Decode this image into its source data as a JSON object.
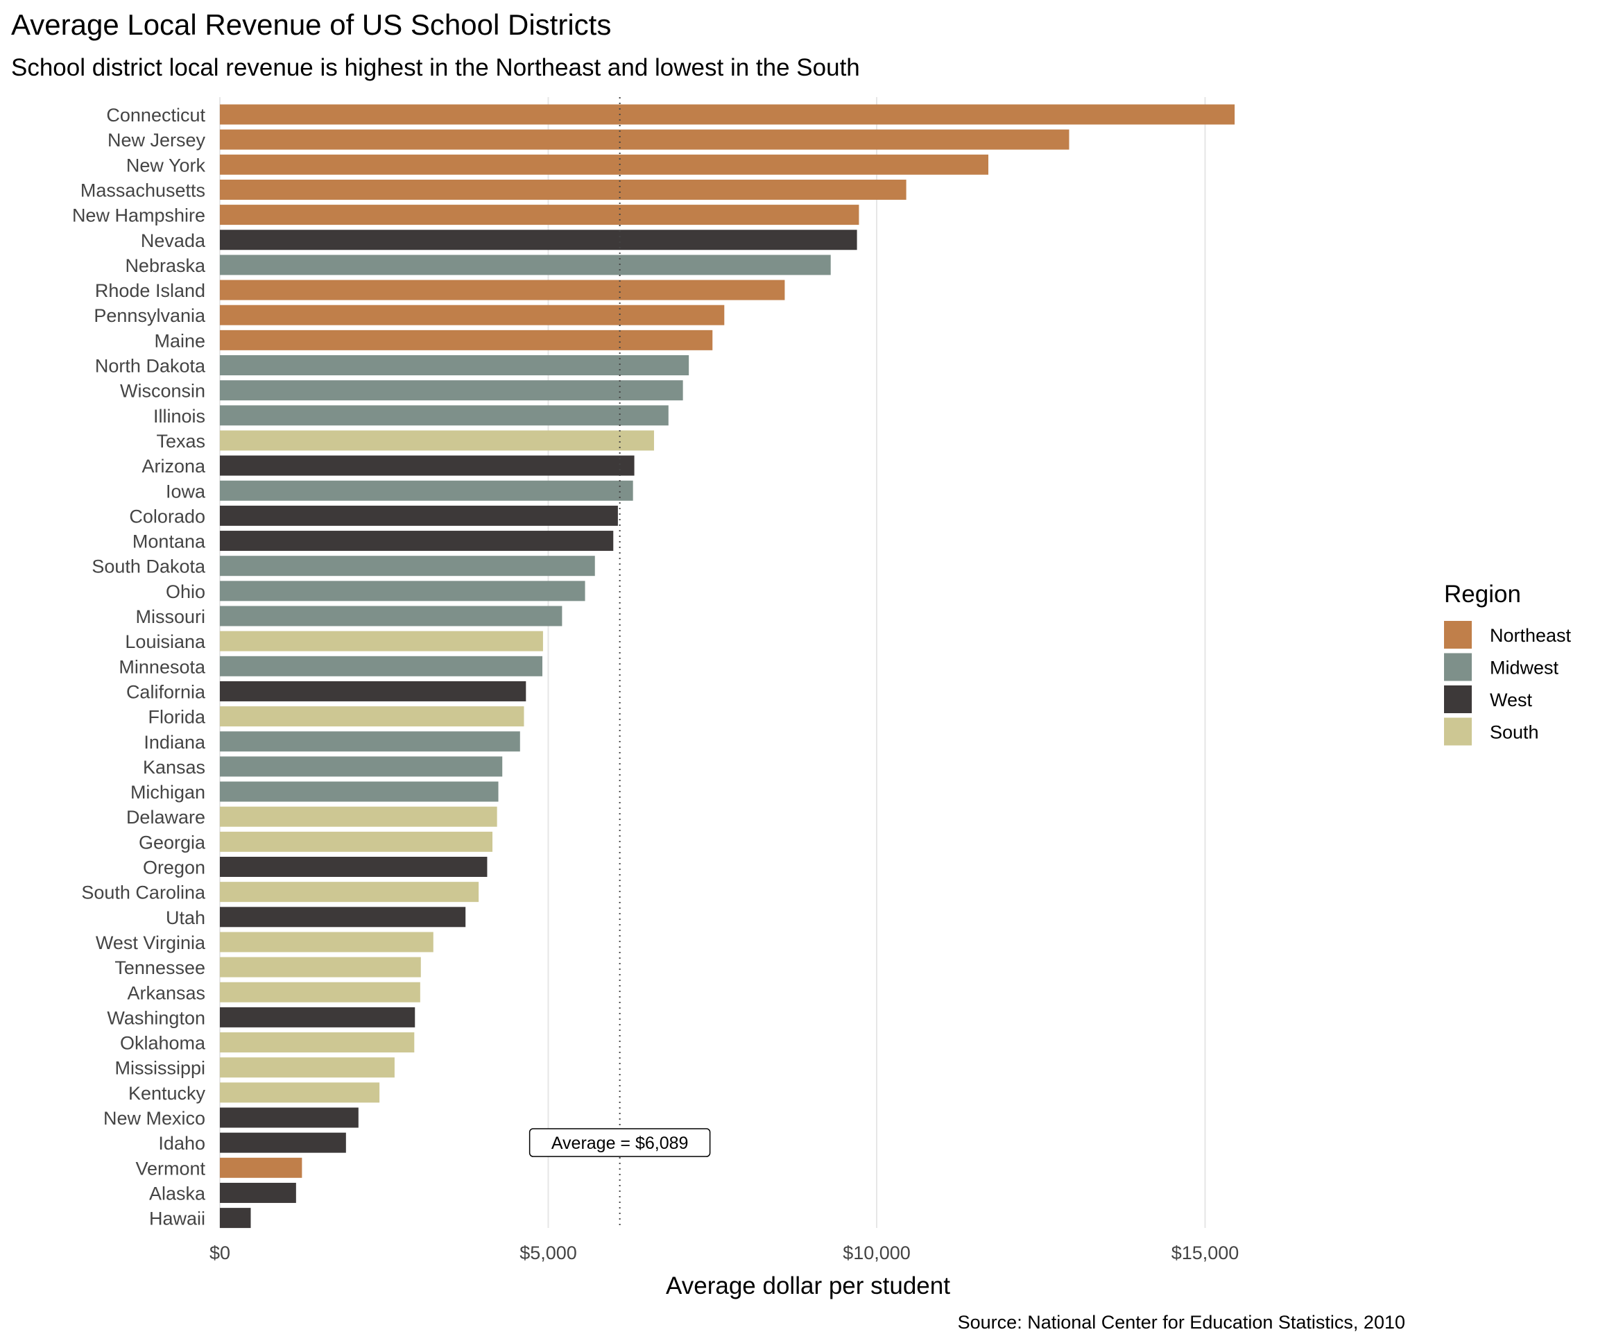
{
  "chart_data": {
    "type": "bar",
    "orientation": "horizontal",
    "title": "Average Local Revenue of US School Districts",
    "subtitle": "School district local revenue is highest in the Northeast and lowest in the South",
    "xlabel": "Average dollar per student",
    "ylabel": "",
    "xlim": [
      0,
      19000
    ],
    "xticks": [
      0,
      5000,
      10000,
      15000
    ],
    "xtick_labels": [
      "$0",
      "$5,000",
      "$10,000",
      "$15,000"
    ],
    "grid": "vertical major gridlines",
    "source": "Source: National Center for Education Statistics, 2010",
    "legend": {
      "title": "Region",
      "placement": "right",
      "entries": [
        {
          "name": "Northeast",
          "color": "#c07f4a"
        },
        {
          "name": "Midwest",
          "color": "#7e908a"
        },
        {
          "name": "West",
          "color": "#3d3939"
        },
        {
          "name": "South",
          "color": "#cdc793"
        }
      ]
    },
    "reference_line": {
      "value": 6089,
      "style": "dotted",
      "label": "Average = $6,089"
    },
    "bars": [
      {
        "state": "Connecticut",
        "value": 15450,
        "region": "Northeast"
      },
      {
        "state": "New Jersey",
        "value": 12930,
        "region": "Northeast"
      },
      {
        "state": "New York",
        "value": 11700,
        "region": "Northeast"
      },
      {
        "state": "Massachusetts",
        "value": 10450,
        "region": "Northeast"
      },
      {
        "state": "New Hampshire",
        "value": 9730,
        "region": "Northeast"
      },
      {
        "state": "Nevada",
        "value": 9700,
        "region": "West"
      },
      {
        "state": "Nebraska",
        "value": 9300,
        "region": "Midwest"
      },
      {
        "state": "Rhode Island",
        "value": 8600,
        "region": "Northeast"
      },
      {
        "state": "Pennsylvania",
        "value": 7680,
        "region": "Northeast"
      },
      {
        "state": "Maine",
        "value": 7500,
        "region": "Northeast"
      },
      {
        "state": "North Dakota",
        "value": 7140,
        "region": "Midwest"
      },
      {
        "state": "Wisconsin",
        "value": 7050,
        "region": "Midwest"
      },
      {
        "state": "Illinois",
        "value": 6830,
        "region": "Midwest"
      },
      {
        "state": "Texas",
        "value": 6610,
        "region": "South"
      },
      {
        "state": "Arizona",
        "value": 6310,
        "region": "West"
      },
      {
        "state": "Iowa",
        "value": 6290,
        "region": "Midwest"
      },
      {
        "state": "Colorado",
        "value": 6060,
        "region": "West"
      },
      {
        "state": "Montana",
        "value": 5990,
        "region": "West"
      },
      {
        "state": "South Dakota",
        "value": 5710,
        "region": "Midwest"
      },
      {
        "state": "Ohio",
        "value": 5560,
        "region": "Midwest"
      },
      {
        "state": "Missouri",
        "value": 5210,
        "region": "Midwest"
      },
      {
        "state": "Louisiana",
        "value": 4920,
        "region": "South"
      },
      {
        "state": "Minnesota",
        "value": 4910,
        "region": "Midwest"
      },
      {
        "state": "California",
        "value": 4660,
        "region": "West"
      },
      {
        "state": "Florida",
        "value": 4630,
        "region": "South"
      },
      {
        "state": "Indiana",
        "value": 4570,
        "region": "Midwest"
      },
      {
        "state": "Kansas",
        "value": 4300,
        "region": "Midwest"
      },
      {
        "state": "Michigan",
        "value": 4240,
        "region": "Midwest"
      },
      {
        "state": "Delaware",
        "value": 4220,
        "region": "South"
      },
      {
        "state": "Georgia",
        "value": 4150,
        "region": "South"
      },
      {
        "state": "Oregon",
        "value": 4070,
        "region": "West"
      },
      {
        "state": "South Carolina",
        "value": 3940,
        "region": "South"
      },
      {
        "state": "Utah",
        "value": 3740,
        "region": "West"
      },
      {
        "state": "West Virginia",
        "value": 3250,
        "region": "South"
      },
      {
        "state": "Tennessee",
        "value": 3060,
        "region": "South"
      },
      {
        "state": "Arkansas",
        "value": 3050,
        "region": "South"
      },
      {
        "state": "Washington",
        "value": 2970,
        "region": "West"
      },
      {
        "state": "Oklahoma",
        "value": 2960,
        "region": "South"
      },
      {
        "state": "Mississippi",
        "value": 2660,
        "region": "South"
      },
      {
        "state": "Kentucky",
        "value": 2430,
        "region": "South"
      },
      {
        "state": "New Mexico",
        "value": 2110,
        "region": "West"
      },
      {
        "state": "Idaho",
        "value": 1920,
        "region": "West"
      },
      {
        "state": "Vermont",
        "value": 1250,
        "region": "Northeast"
      },
      {
        "state": "Alaska",
        "value": 1160,
        "region": "West"
      },
      {
        "state": "Hawaii",
        "value": 470,
        "region": "West"
      }
    ]
  }
}
